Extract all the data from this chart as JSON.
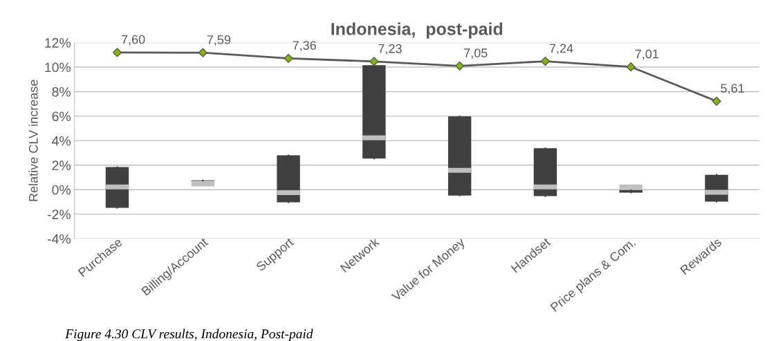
{
  "chart_data": {
    "type": "box",
    "title": "Indonesia,  post-paid",
    "ylabel": "Relative CLV increase",
    "categories": [
      "Purchase",
      "Billing/Account",
      "Support",
      "Network",
      "Value for Money",
      "Handset",
      "Price plans & Com.",
      "Rewards"
    ],
    "series": [
      {
        "color": "#404040",
        "boxes": [
          {
            "low": -1.48,
            "q1": -1.48,
            "median": 0.23,
            "q3": 1.85,
            "high": 1.85
          },
          {
            "low": 0.7,
            "q1": 0.7,
            "median": 0.47,
            "q3": 0.76,
            "high": 0.76
          },
          {
            "low": -1.03,
            "q1": -1.03,
            "median": -0.24,
            "q3": 2.8,
            "high": 2.8
          },
          {
            "low": 2.54,
            "q1": 2.54,
            "median": 4.23,
            "q3": 10.16,
            "high": 10.16
          },
          {
            "low": -0.48,
            "q1": -0.48,
            "median": 1.58,
            "q3": 5.98,
            "high": 5.98
          },
          {
            "low": -0.53,
            "q1": -0.53,
            "median": 0.23,
            "q3": 3.38,
            "high": 3.38
          },
          {
            "low": -0.24,
            "q1": -0.24,
            "median": 0.22,
            "q3": -0.03,
            "high": -0.03
          },
          {
            "low": -0.97,
            "q1": -0.97,
            "median": -0.21,
            "q3": 1.21,
            "high": 1.21
          }
        ]
      },
      {
        "type": "line",
        "axis": "y2",
        "color": "#595959",
        "marker": "diamond",
        "values": [
          7.6,
          7.59,
          7.36,
          7.23,
          7.05,
          7.24,
          7.01,
          5.61
        ],
        "value_labels": [
          "7,60",
          "7,59",
          "7,36",
          "7,23",
          "7,05",
          "7,24",
          "7,01",
          "5,61"
        ]
      }
    ],
    "ylim": [
      -4,
      12
    ],
    "y2lim": [
      0,
      8
    ],
    "yticks": [
      {
        "value": -4,
        "label": "-4%"
      },
      {
        "value": -2,
        "label": "-2%"
      },
      {
        "value": 0,
        "label": "0%"
      },
      {
        "value": 2,
        "label": "2%"
      },
      {
        "value": 4,
        "label": "4%"
      },
      {
        "value": 6,
        "label": "6%"
      },
      {
        "value": 8,
        "label": "8%"
      },
      {
        "value": 10,
        "label": "10%"
      },
      {
        "value": 12,
        "label": "12%"
      }
    ],
    "grid": "y",
    "annotations": [
      "Figure 4.30 CLV results, Indonesia, Post-paid"
    ]
  }
}
